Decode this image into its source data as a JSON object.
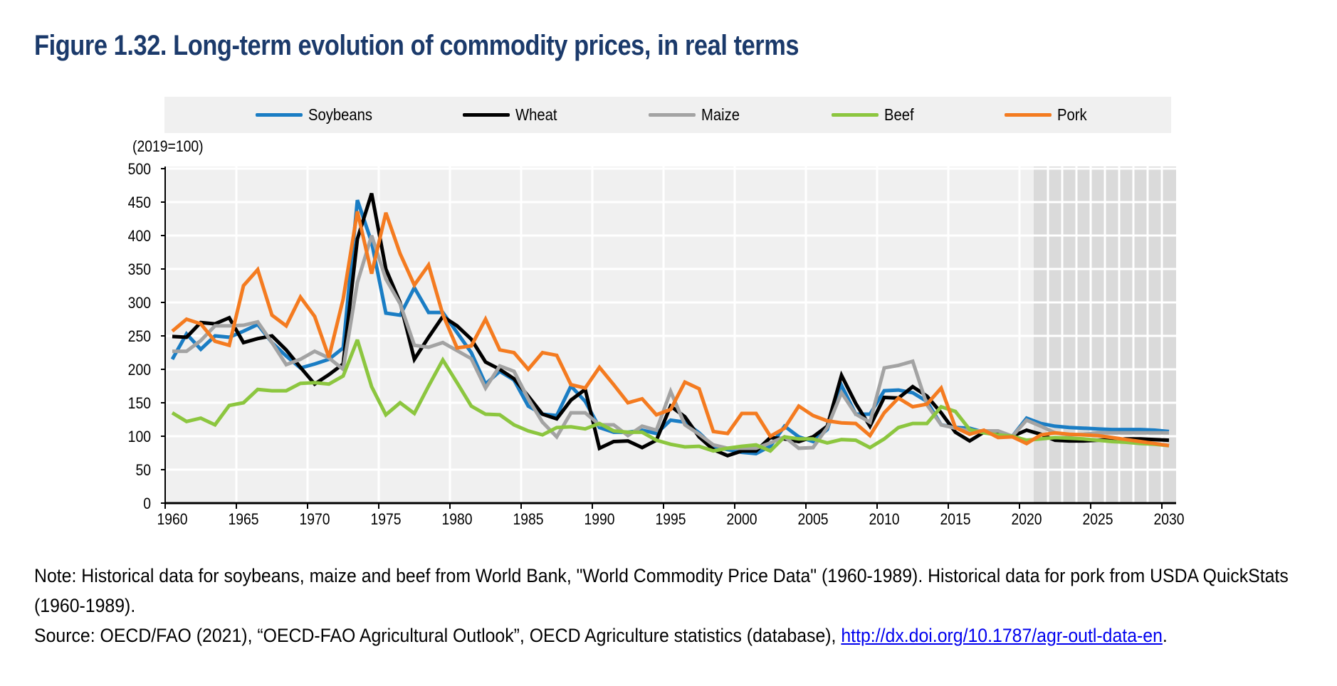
{
  "title": "Figure 1.32. Long-term evolution of commodity prices, in real terms",
  "unit_label": "(2019=100)",
  "notes": {
    "note": "Note: Historical data for soybeans, maize and beef from World Bank, \"World Commodity Price Data\" (1960-1989). Historical data for pork from USDA QuickStats (1960-1989).",
    "source_prefix": "Source: OECD/FAO (2021), “OECD-FAO Agricultural Outlook”, OECD Agriculture statistics (database), ",
    "source_link": "http://dx.doi.org/10.1787/agr-outl-data-en",
    "source_suffix": "."
  },
  "chart_data": {
    "type": "line",
    "title": "Figure 1.32. Long-term evolution of commodity prices, in real terms",
    "ylabel": "(2019=100)",
    "xlabel": "",
    "ylim": [
      0,
      500
    ],
    "yticks": [
      0,
      50,
      100,
      150,
      200,
      250,
      300,
      350,
      400,
      450,
      500
    ],
    "x_start": 1960,
    "x_end": 2030,
    "xticks": [
      1960,
      1965,
      1970,
      1975,
      1980,
      1985,
      1990,
      1995,
      2000,
      2005,
      2010,
      2015,
      2020,
      2025,
      2030
    ],
    "projection_start": 2021,
    "grid": true,
    "legend_position": "top",
    "series": [
      {
        "name": "Soybeans",
        "color": "#1a7dc4",
        "values": [
          215,
          253,
          230,
          250,
          248,
          257,
          267,
          240,
          220,
          202,
          208,
          215,
          232,
          453,
          390,
          284,
          281,
          322,
          285,
          285,
          255,
          225,
          178,
          197,
          184,
          145,
          133,
          131,
          175,
          152,
          113,
          106,
          106,
          109,
          104,
          124,
          121,
          105,
          85,
          80,
          76,
          74,
          85,
          115,
          99,
          92,
          110,
          176,
          133,
          133,
          168,
          169,
          165,
          152,
          117,
          113,
          112,
          106,
          101,
          100,
          127,
          119,
          115,
          113,
          112,
          111,
          110,
          110,
          110,
          109,
          107
        ]
      },
      {
        "name": "Wheat",
        "color": "#000000",
        "values": [
          249,
          248,
          270,
          268,
          277,
          240,
          246,
          250,
          229,
          203,
          178,
          192,
          208,
          395,
          463,
          350,
          300,
          215,
          248,
          279,
          265,
          245,
          211,
          200,
          186,
          160,
          133,
          126,
          154,
          170,
          82,
          92,
          93,
          83,
          94,
          145,
          129,
          99,
          80,
          71,
          78,
          78,
          98,
          96,
          92,
          99,
          115,
          191,
          149,
          115,
          158,
          157,
          174,
          160,
          135,
          106,
          93,
          106,
          106,
          100,
          109,
          103,
          94,
          93,
          93,
          94,
          95,
          96,
          96,
          95,
          94
        ]
      },
      {
        "name": "Maize",
        "color": "#a3a3a3",
        "values": [
          227,
          227,
          243,
          265,
          265,
          266,
          271,
          240,
          207,
          215,
          227,
          217,
          200,
          330,
          400,
          335,
          298,
          236,
          233,
          240,
          228,
          216,
          172,
          205,
          197,
          156,
          121,
          99,
          135,
          135,
          117,
          117,
          101,
          115,
          109,
          167,
          117,
          103,
          87,
          82,
          82,
          82,
          90,
          99,
          82,
          83,
          113,
          165,
          133,
          121,
          202,
          206,
          212,
          147,
          117,
          112,
          108,
          108,
          108,
          100,
          124,
          115,
          105,
          102,
          103,
          105,
          105,
          105,
          105,
          105,
          105
        ]
      },
      {
        "name": "Beef",
        "color": "#8cc63f",
        "values": [
          135,
          122,
          127,
          117,
          146,
          150,
          170,
          168,
          168,
          179,
          180,
          178,
          190,
          244,
          174,
          132,
          150,
          134,
          175,
          214,
          180,
          145,
          133,
          132,
          117,
          108,
          102,
          113,
          114,
          111,
          119,
          108,
          106,
          106,
          94,
          88,
          84,
          85,
          78,
          82,
          85,
          87,
          78,
          99,
          96,
          96,
          90,
          95,
          94,
          83,
          96,
          113,
          119,
          119,
          144,
          137,
          110,
          105,
          102,
          100,
          94,
          96,
          98,
          97,
          96,
          94,
          92,
          91,
          89,
          88,
          86
        ]
      },
      {
        "name": "Pork",
        "color": "#f47b20",
        "values": [
          257,
          275,
          268,
          242,
          236,
          325,
          349,
          281,
          265,
          308,
          279,
          218,
          305,
          436,
          343,
          434,
          373,
          326,
          356,
          282,
          232,
          235,
          275,
          229,
          225,
          200,
          225,
          221,
          177,
          172,
          203,
          177,
          150,
          156,
          132,
          140,
          181,
          171,
          107,
          104,
          134,
          134,
          100,
          112,
          145,
          131,
          123,
          120,
          119,
          101,
          135,
          157,
          144,
          148,
          172,
          113,
          103,
          109,
          98,
          99,
          89,
          102,
          105,
          103,
          102,
          101,
          98,
          95,
          92,
          89,
          86
        ]
      }
    ]
  }
}
